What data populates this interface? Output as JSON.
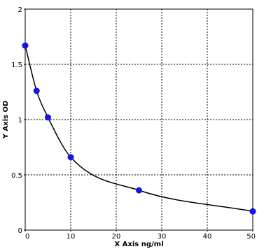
{
  "chart_data": {
    "type": "scatter",
    "xlabel": "X Axis ng/ml",
    "ylabel": "Y Axis OD",
    "xlim": [
      0,
      50
    ],
    "ylim": [
      0,
      2
    ],
    "x_ticks": [
      {
        "value": 0,
        "label": "0"
      },
      {
        "value": 10,
        "label": "10"
      },
      {
        "value": 20,
        "label": "20"
      },
      {
        "value": 30,
        "label": "30"
      },
      {
        "value": 40,
        "label": "40"
      },
      {
        "value": 50,
        "label": "50"
      }
    ],
    "y_ticks": [
      {
        "value": 0,
        "label": "0"
      },
      {
        "value": 0.5,
        "label": "0.5"
      },
      {
        "value": 1,
        "label": "1"
      },
      {
        "value": 1.5,
        "label": "1.5"
      },
      {
        "value": 2,
        "label": "2"
      }
    ],
    "grid": true,
    "series": [
      {
        "points": [
          {
            "x": 0,
            "y": 1.67
          },
          {
            "x": 2.5,
            "y": 1.26
          },
          {
            "x": 5,
            "y": 1.02
          },
          {
            "x": 10,
            "y": 0.66
          },
          {
            "x": 25,
            "y": 0.36
          },
          {
            "x": 50,
            "y": 0.17
          }
        ]
      }
    ],
    "colors": {
      "marker": "#1414e6",
      "curve": "#000000",
      "grid": "#000000",
      "frame": "#000000"
    }
  }
}
